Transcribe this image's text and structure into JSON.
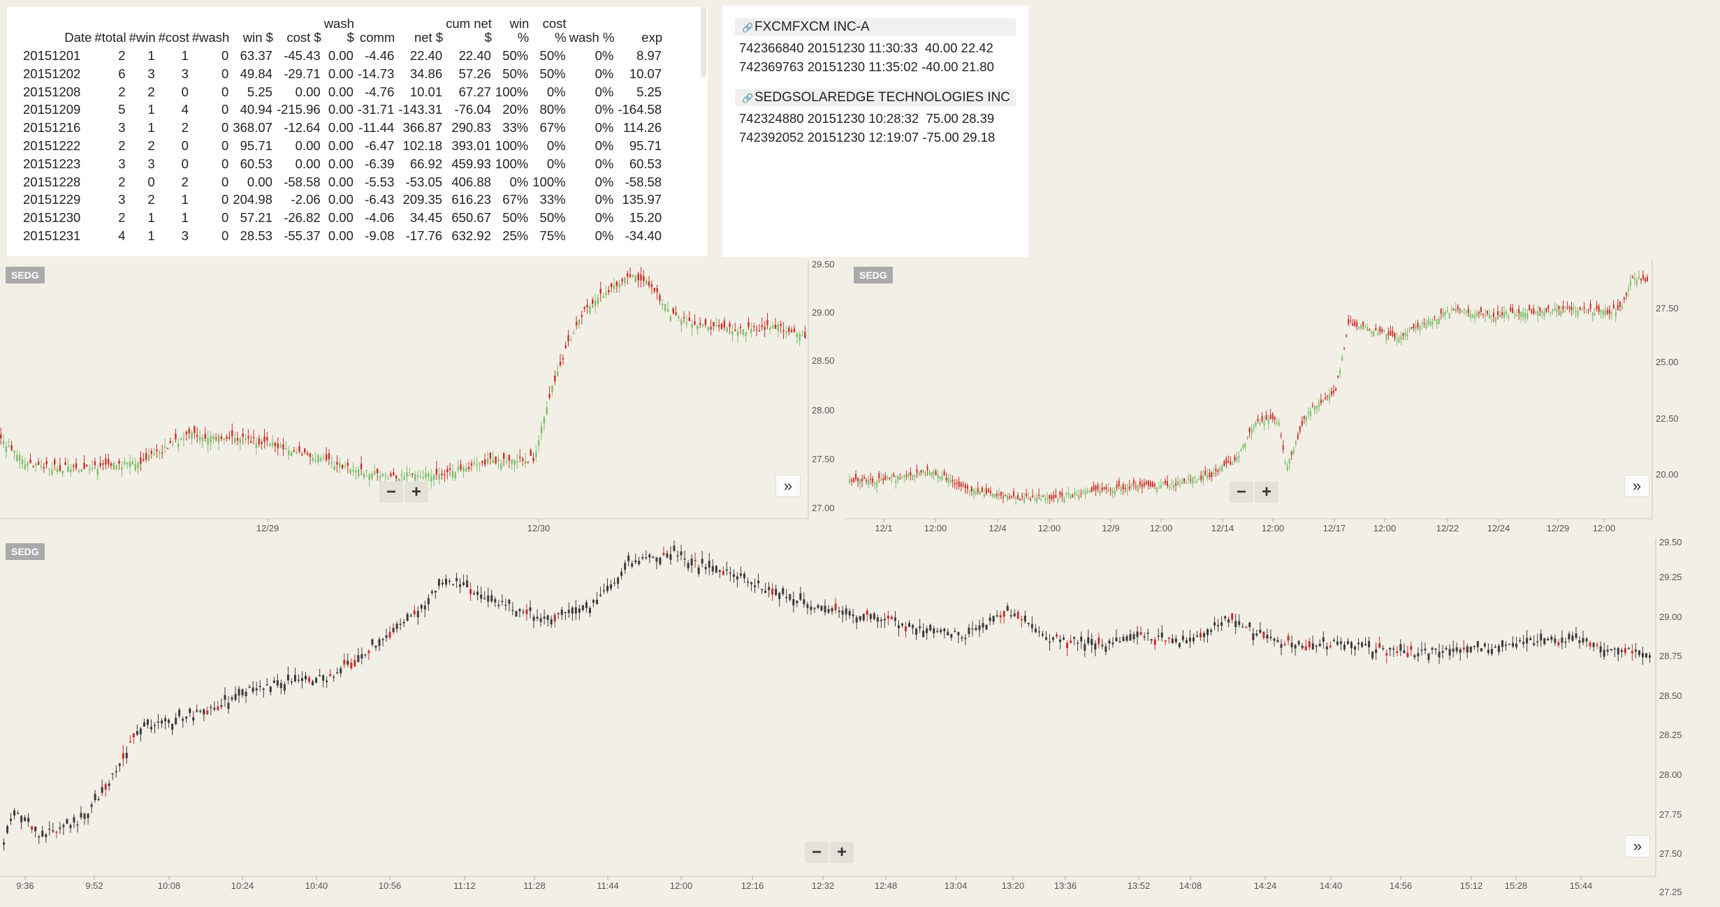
{
  "stats": {
    "headers": [
      {
        "l1": "",
        "l2": "Date"
      },
      {
        "l1": "",
        "l2": "#total"
      },
      {
        "l1": "",
        "l2": "#win"
      },
      {
        "l1": "",
        "l2": "#cost"
      },
      {
        "l1": "",
        "l2": "#wash"
      },
      {
        "l1": "",
        "l2": "win $"
      },
      {
        "l1": "",
        "l2": "cost $"
      },
      {
        "l1": "wash",
        "l2": "$"
      },
      {
        "l1": "",
        "l2": "comm"
      },
      {
        "l1": "",
        "l2": "net $"
      },
      {
        "l1": "cum net",
        "l2": "$"
      },
      {
        "l1": "win",
        "l2": "%"
      },
      {
        "l1": "cost",
        "l2": "%"
      },
      {
        "l1": "",
        "l2": "wash %"
      },
      {
        "l1": "",
        "l2": "exp"
      }
    ],
    "rows": [
      [
        "20151201",
        "2",
        "1",
        "1",
        "0",
        "63.37",
        "-45.43",
        "0.00",
        "-4.46",
        "22.40",
        "22.40",
        "50%",
        "50%",
        "0%",
        "8.97"
      ],
      [
        "20151202",
        "6",
        "3",
        "3",
        "0",
        "49.84",
        "-29.71",
        "0.00",
        "-14.73",
        "34.86",
        "57.26",
        "50%",
        "50%",
        "0%",
        "10.07"
      ],
      [
        "20151208",
        "2",
        "2",
        "0",
        "0",
        "5.25",
        "0.00",
        "0.00",
        "-4.76",
        "10.01",
        "67.27",
        "100%",
        "0%",
        "0%",
        "5.25"
      ],
      [
        "20151209",
        "5",
        "1",
        "4",
        "0",
        "40.94",
        "-215.96",
        "0.00",
        "-31.71",
        "-143.31",
        "-76.04",
        "20%",
        "80%",
        "0%",
        "-164.58"
      ],
      [
        "20151216",
        "3",
        "1",
        "2",
        "0",
        "368.07",
        "-12.64",
        "0.00",
        "-11.44",
        "366.87",
        "290.83",
        "33%",
        "67%",
        "0%",
        "114.26"
      ],
      [
        "20151222",
        "2",
        "2",
        "0",
        "0",
        "95.71",
        "0.00",
        "0.00",
        "-6.47",
        "102.18",
        "393.01",
        "100%",
        "0%",
        "0%",
        "95.71"
      ],
      [
        "20151223",
        "3",
        "3",
        "0",
        "0",
        "60.53",
        "0.00",
        "0.00",
        "-6.39",
        "66.92",
        "459.93",
        "100%",
        "0%",
        "0%",
        "60.53"
      ],
      [
        "20151228",
        "2",
        "0",
        "2",
        "0",
        "0.00",
        "-58.58",
        "0.00",
        "-5.53",
        "-53.05",
        "406.88",
        "0%",
        "100%",
        "0%",
        "-58.58"
      ],
      [
        "20151229",
        "3",
        "2",
        "1",
        "0",
        "204.98",
        "-2.06",
        "0.00",
        "-6.43",
        "209.35",
        "616.23",
        "67%",
        "33%",
        "0%",
        "135.97"
      ],
      [
        "20151230",
        "2",
        "1",
        "1",
        "0",
        "57.21",
        "-26.82",
        "0.00",
        "-4.06",
        "34.45",
        "650.67",
        "50%",
        "50%",
        "0%",
        "15.20"
      ],
      [
        "20151231",
        "4",
        "1",
        "3",
        "0",
        "28.53",
        "-55.37",
        "0.00",
        "-9.08",
        "-17.76",
        "632.92",
        "25%",
        "75%",
        "0%",
        "-34.40"
      ]
    ]
  },
  "trades": [
    {
      "symbol": "FXCMFXCM INC-A",
      "icon": "link-icon",
      "rows": [
        "742366840 20151230 11:30:33  40.00 22.42",
        "742369763 20151230 11:35:02 -40.00 21.80"
      ]
    },
    {
      "symbol": "SEDGSOLAREDGE TECHNOLOGIES INC",
      "icon": "link-icon",
      "rows": [
        "742324880 20151230 10:28:32  75.00 28.39",
        "742392052 20151230 12:19:07 -75.00 29.18"
      ]
    }
  ],
  "charts": {
    "top_left": {
      "symbol": "SEDG",
      "y_ticks": [
        "29.50",
        "29.00",
        "28.50",
        "28.00",
        "27.50",
        "27.00"
      ],
      "x_ticks": [
        "12/29",
        "12/30"
      ]
    },
    "top_right": {
      "symbol": "SEDG",
      "y_ticks": [
        "27.50",
        "25.00",
        "22.50",
        "20.00"
      ],
      "x_ticks": [
        "12/1",
        "12:00",
        "12/4",
        "12:00",
        "12/9",
        "12:00",
        "12/14",
        "12:00",
        "12/17",
        "12:00",
        "12/22",
        "12/24",
        "12/29",
        "12:00"
      ]
    },
    "bottom": {
      "symbol": "SEDG",
      "y_ticks": [
        "29.50",
        "29.25",
        "29.00",
        "28.75",
        "28.50",
        "28.25",
        "28.00",
        "27.75",
        "27.50",
        "27.25"
      ],
      "x_ticks": [
        "9:36",
        "9:52",
        "10:08",
        "10:24",
        "10:40",
        "10:56",
        "11:12",
        "11:28",
        "11:44",
        "12:00",
        "12:16",
        "12:32",
        "12:48",
        "13:04",
        "13:20",
        "13:36",
        "13:52",
        "14:08",
        "14:24",
        "14:40",
        "14:56",
        "15:12",
        "15:28",
        "15:44"
      ]
    },
    "colors": {
      "up": "#7cbf6a",
      "down": "#c8302a",
      "dark": "#3a3a3a"
    }
  },
  "controls": {
    "zoom_out": "−",
    "zoom_in": "+",
    "scroll_right": "»"
  }
}
